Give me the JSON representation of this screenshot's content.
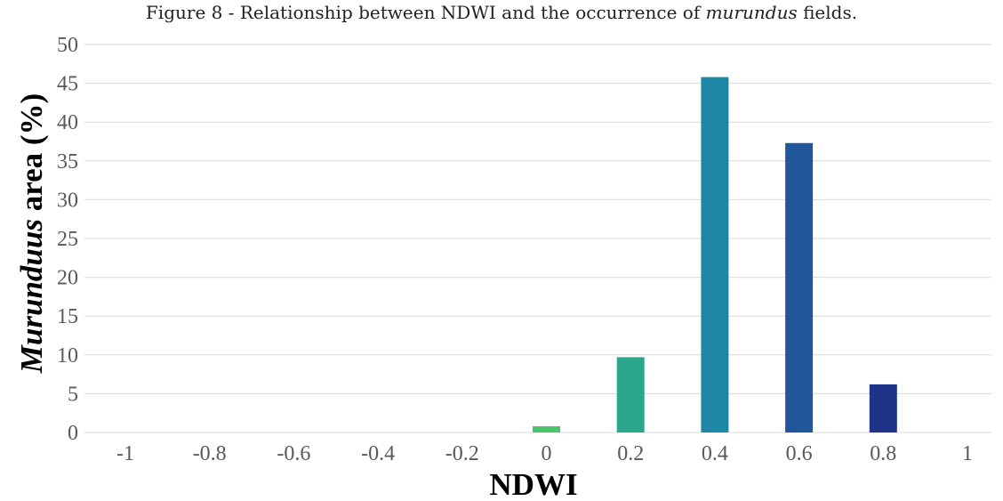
{
  "caption": {
    "prefix": "Figure 8 - Relationship between NDWI and the occurrence of ",
    "italic": "murundus",
    "suffix": " fields."
  },
  "chart_data": {
    "type": "bar",
    "categories": [
      "-1",
      "-0.8",
      "-0.6",
      "-0.4",
      "-0.2",
      "0",
      "0.2",
      "0.4",
      "0.6",
      "0.8",
      "1"
    ],
    "values": [
      0,
      0,
      0,
      0,
      0,
      0.8,
      9.7,
      45.8,
      37.3,
      6.2,
      0
    ],
    "colors": [
      "#440154",
      "#482475",
      "#414487",
      "#355f8d",
      "#2a788e",
      "#4cc26c",
      "#2ca58d",
      "#1f87a6",
      "#21579a",
      "#1f3388",
      "#1a2a80"
    ],
    "xlabel": "NDWI",
    "ylabel_italic": "Murunduus",
    "ylabel_rest": " area (%)",
    "ylim": [
      0,
      50
    ],
    "yticks": [
      0,
      5,
      10,
      15,
      20,
      25,
      30,
      35,
      40,
      45,
      50
    ],
    "grid": true,
    "gridline_color": "#d9d9d9"
  }
}
